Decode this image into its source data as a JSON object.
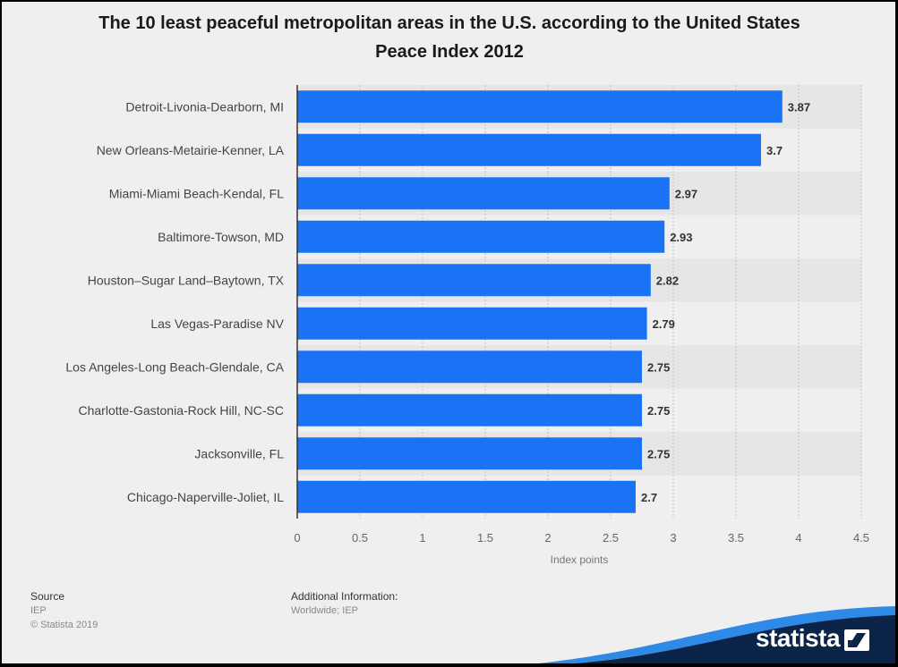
{
  "chart_data": {
    "type": "bar",
    "orientation": "horizontal",
    "title": "The 10 least peaceful metropolitan areas in the U.S. according to the United States Peace Index 2012",
    "categories": [
      "Detroit-Livonia-Dearborn, MI",
      "New Orleans-Metairie-Kenner, LA",
      "Miami-Miami Beach-Kendal, FL",
      "Baltimore-Towson, MD",
      "Houston–Sugar Land–Baytown, TX",
      "Las Vegas-Paradise NV",
      "Los Angeles-Long Beach-Glendale, CA",
      "Charlotte-Gastonia-Rock Hill, NC-SC",
      "Jacksonville, FL",
      "Chicago-Naperville-Joliet, IL"
    ],
    "values": [
      3.87,
      3.7,
      2.97,
      2.93,
      2.82,
      2.79,
      2.75,
      2.75,
      2.75,
      2.7
    ],
    "value_labels": [
      "3.87",
      "3.7",
      "2.97",
      "2.93",
      "2.82",
      "2.79",
      "2.75",
      "2.75",
      "2.75",
      "2.7"
    ],
    "xlabel": "Index points",
    "ylabel": "",
    "xlim": [
      0,
      4.5
    ],
    "ticks": [
      "0",
      "0.5",
      "1",
      "1.5",
      "2",
      "2.5",
      "3",
      "3.5",
      "4",
      "4.5"
    ],
    "grid": true,
    "bar_color": "#1a73f5"
  },
  "footer": {
    "source_heading": "Source",
    "source_value": "IEP",
    "copyright": "© Statista 2019",
    "additional_heading": "Additional Information:",
    "additional_value": "Worldwide; IEP"
  },
  "brand": {
    "name": "statista",
    "banner_color": "#0b2447",
    "accent_color": "#2e8ae6"
  }
}
